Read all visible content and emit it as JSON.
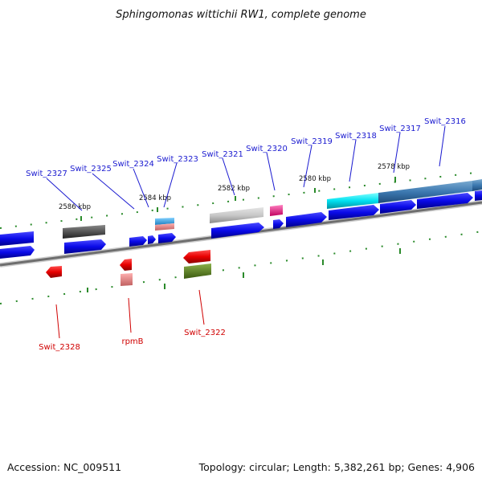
{
  "header": {
    "title": "Sphingomonas wittichii RW1, complete genome"
  },
  "footer": {
    "accession": "Accession: NC_009511",
    "summary": "Topology: circular; Length: 5,382,261 bp; Genes: 4,906"
  },
  "scale": {
    "ticks": [
      "2586 kbp",
      "2584 kbp",
      "2582 kbp",
      "2580 kbp",
      "2578 kbp"
    ]
  },
  "genes": {
    "top_labels": [
      "Swit_2327",
      "Swit_2325",
      "Swit_2324",
      "Swit_2323",
      "Swit_2321",
      "Swit_2320",
      "Swit_2319",
      "Swit_2318",
      "Swit_2317",
      "Swit_2316"
    ],
    "bottom_labels": [
      "Swit_2328",
      "rpmB",
      "Swit_2322"
    ]
  },
  "colors": {
    "forward_cds": "#1010e0",
    "reverse_cds": "#e00000",
    "backbone": "#777777",
    "tick": "#2a8a2a",
    "top_label": "#1a1ad0",
    "bottom_label": "#d00000"
  }
}
